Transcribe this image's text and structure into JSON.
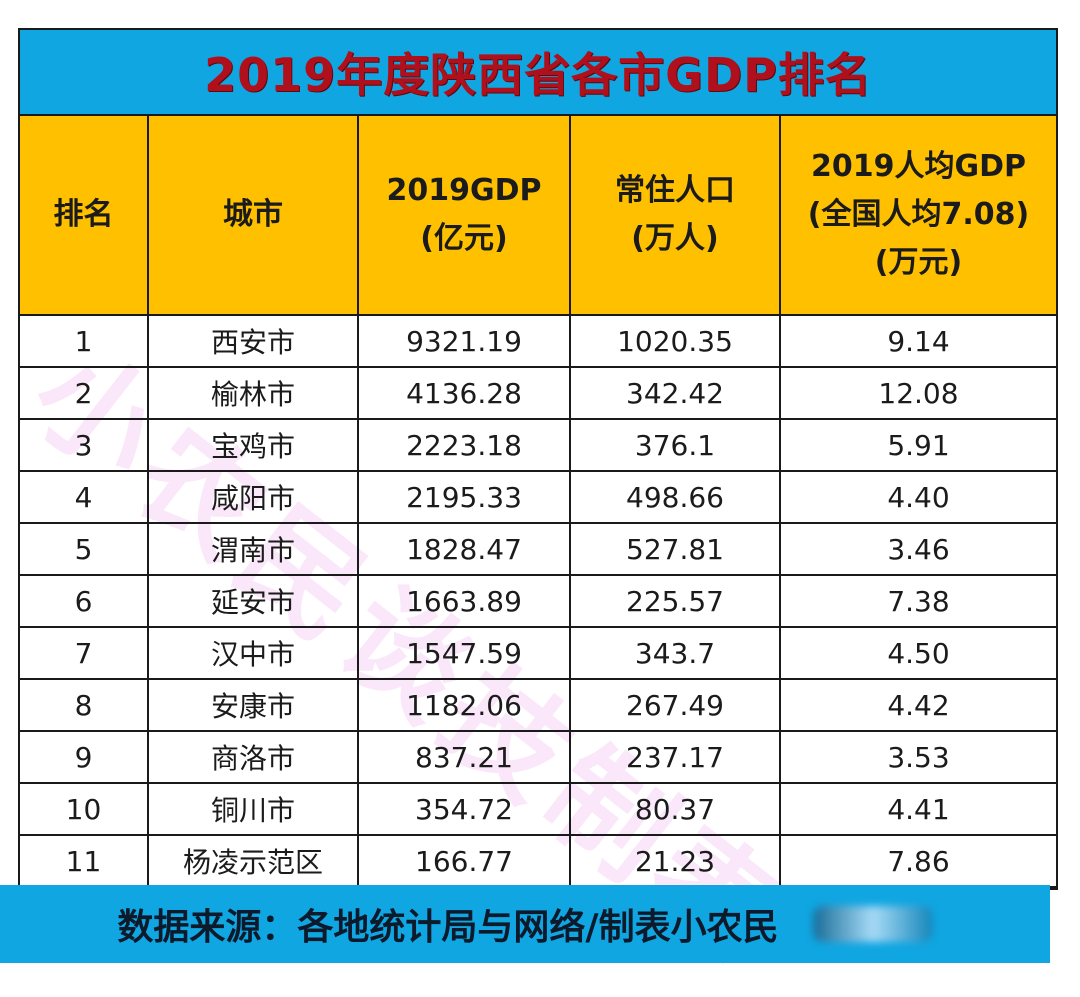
{
  "title": "2019年度陕西省各市GDP排名",
  "table": {
    "headers": {
      "rank": [
        "排名"
      ],
      "city": [
        "城市"
      ],
      "gdp": [
        "2019GDP",
        "(亿元)"
      ],
      "population": [
        "常住人口",
        "(万人)"
      ],
      "per_capita": [
        "2019人均GDP",
        "(全国人均7.08)",
        "(万元)"
      ]
    },
    "rows": [
      {
        "rank": "1",
        "city": "西安市",
        "gdp": "9321.19",
        "population": "1020.35",
        "per_capita": "9.14"
      },
      {
        "rank": "2",
        "city": "榆林市",
        "gdp": "4136.28",
        "population": "342.42",
        "per_capita": "12.08"
      },
      {
        "rank": "3",
        "city": "宝鸡市",
        "gdp": "2223.18",
        "population": "376.1",
        "per_capita": "5.91"
      },
      {
        "rank": "4",
        "city": "咸阳市",
        "gdp": "2195.33",
        "population": "498.66",
        "per_capita": "4.40"
      },
      {
        "rank": "5",
        "city": "渭南市",
        "gdp": "1828.47",
        "population": "527.81",
        "per_capita": "3.46"
      },
      {
        "rank": "6",
        "city": "延安市",
        "gdp": "1663.89",
        "population": "225.57",
        "per_capita": "7.38"
      },
      {
        "rank": "7",
        "city": "汉中市",
        "gdp": "1547.59",
        "population": "343.7",
        "per_capita": "4.50"
      },
      {
        "rank": "8",
        "city": "安康市",
        "gdp": "1182.06",
        "population": "267.49",
        "per_capita": "4.42"
      },
      {
        "rank": "9",
        "city": "商洛市",
        "gdp": "837.21",
        "population": "237.17",
        "per_capita": "3.53"
      },
      {
        "rank": "10",
        "city": "铜川市",
        "gdp": "354.72",
        "population": "80.37",
        "per_capita": "4.41"
      },
      {
        "rank": "11",
        "city": "杨凌示范区",
        "gdp": "166.77",
        "population": "21.23",
        "per_capita": "7.86"
      }
    ]
  },
  "watermark": "小农民谈技制表",
  "footer": "数据来源：各地统计局与网络/制表小农民",
  "colors": {
    "title_band": "#10A6E2",
    "title_text": "#B0101C",
    "header_bg": "#FFC000",
    "footer_band": "#10A6E2",
    "watermark": "#E678DC"
  }
}
